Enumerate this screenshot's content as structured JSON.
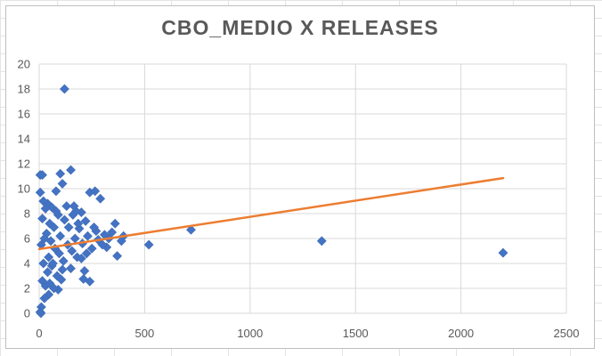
{
  "chart_data": {
    "type": "scatter",
    "title": "CBO_MEDIO X RELEASES",
    "xlabel": "",
    "ylabel": "",
    "xlim": [
      0,
      2500
    ],
    "ylim": [
      0,
      20
    ],
    "x_ticks": [
      "0",
      "500",
      "1000",
      "1500",
      "2000",
      "2500"
    ],
    "y_ticks": [
      "0",
      "2",
      "4",
      "6",
      "8",
      "10",
      "12",
      "14",
      "16",
      "18",
      "20"
    ],
    "grid": "vertical and horizontal major gridlines",
    "legend": "none",
    "series": [
      {
        "marker": "diamond",
        "color": "#4472c4",
        "points": [
          [
            120,
            18
          ],
          [
            150,
            11.5
          ],
          [
            100,
            11.2
          ],
          [
            5,
            11.1
          ],
          [
            15,
            11.1
          ],
          [
            110,
            10.4
          ],
          [
            240,
            9.7
          ],
          [
            265,
            9.8
          ],
          [
            290,
            9.2
          ],
          [
            5,
            9.7
          ],
          [
            80,
            9.8
          ],
          [
            200,
            8.1
          ],
          [
            175,
            8.2
          ],
          [
            360,
            7.2
          ],
          [
            400,
            6.2
          ],
          [
            390,
            5.8
          ],
          [
            520,
            5.5
          ],
          [
            720,
            6.7
          ],
          [
            1340,
            5.8
          ],
          [
            2200,
            4.85
          ],
          [
            370,
            4.6
          ],
          [
            320,
            5.3
          ],
          [
            300,
            5.5
          ],
          [
            250,
            5.2
          ],
          [
            180,
            4.5
          ],
          [
            215,
            3.4
          ],
          [
            150,
            3.6
          ],
          [
            210,
            2.75
          ],
          [
            240,
            2.55
          ],
          [
            90,
            1.9
          ],
          [
            45,
            1.5
          ],
          [
            25,
            1.2
          ],
          [
            10,
            0.5
          ],
          [
            5,
            0.1
          ],
          [
            8,
            0
          ],
          [
            40,
            8.8
          ],
          [
            60,
            8.5
          ],
          [
            130,
            8.6
          ],
          [
            160,
            7.9
          ],
          [
            220,
            7.4
          ],
          [
            270,
            6.6
          ],
          [
            330,
            6.0
          ],
          [
            280,
            5.9
          ],
          [
            230,
            6.2
          ],
          [
            190,
            6.8
          ],
          [
            120,
            7.5
          ],
          [
            90,
            7.9
          ],
          [
            70,
            6.9
          ],
          [
            50,
            7.2
          ],
          [
            30,
            8.4
          ],
          [
            20,
            9.0
          ],
          [
            35,
            6.4
          ],
          [
            55,
            5.8
          ],
          [
            75,
            5.2
          ],
          [
            95,
            4.8
          ],
          [
            115,
            4.2
          ],
          [
            135,
            5.5
          ],
          [
            155,
            5.0
          ],
          [
            170,
            6.0
          ],
          [
            205,
            5.6
          ],
          [
            225,
            4.8
          ],
          [
            20,
            4.0
          ],
          [
            40,
            3.3
          ],
          [
            60,
            3.8
          ],
          [
            85,
            3.0
          ],
          [
            105,
            2.7
          ],
          [
            15,
            2.6
          ],
          [
            30,
            2.2
          ],
          [
            50,
            2.4
          ],
          [
            70,
            2.0
          ],
          [
            10,
            5.5
          ],
          [
            25,
            6.0
          ],
          [
            45,
            4.5
          ],
          [
            65,
            4.0
          ],
          [
            15,
            7.6
          ],
          [
            100,
            6.2
          ],
          [
            140,
            6.9
          ],
          [
            80,
            8.2
          ],
          [
            110,
            3.5
          ],
          [
            260,
            6.9
          ],
          [
            310,
            6.3
          ],
          [
            345,
            6.5
          ],
          [
            200,
            4.4
          ],
          [
            165,
            8.6
          ],
          [
            185,
            7.2
          ]
        ]
      }
    ],
    "trendline": {
      "type": "linear",
      "color": "#ed7d31",
      "points": [
        [
          0,
          5.15
        ],
        [
          2200,
          10.85
        ]
      ]
    }
  }
}
